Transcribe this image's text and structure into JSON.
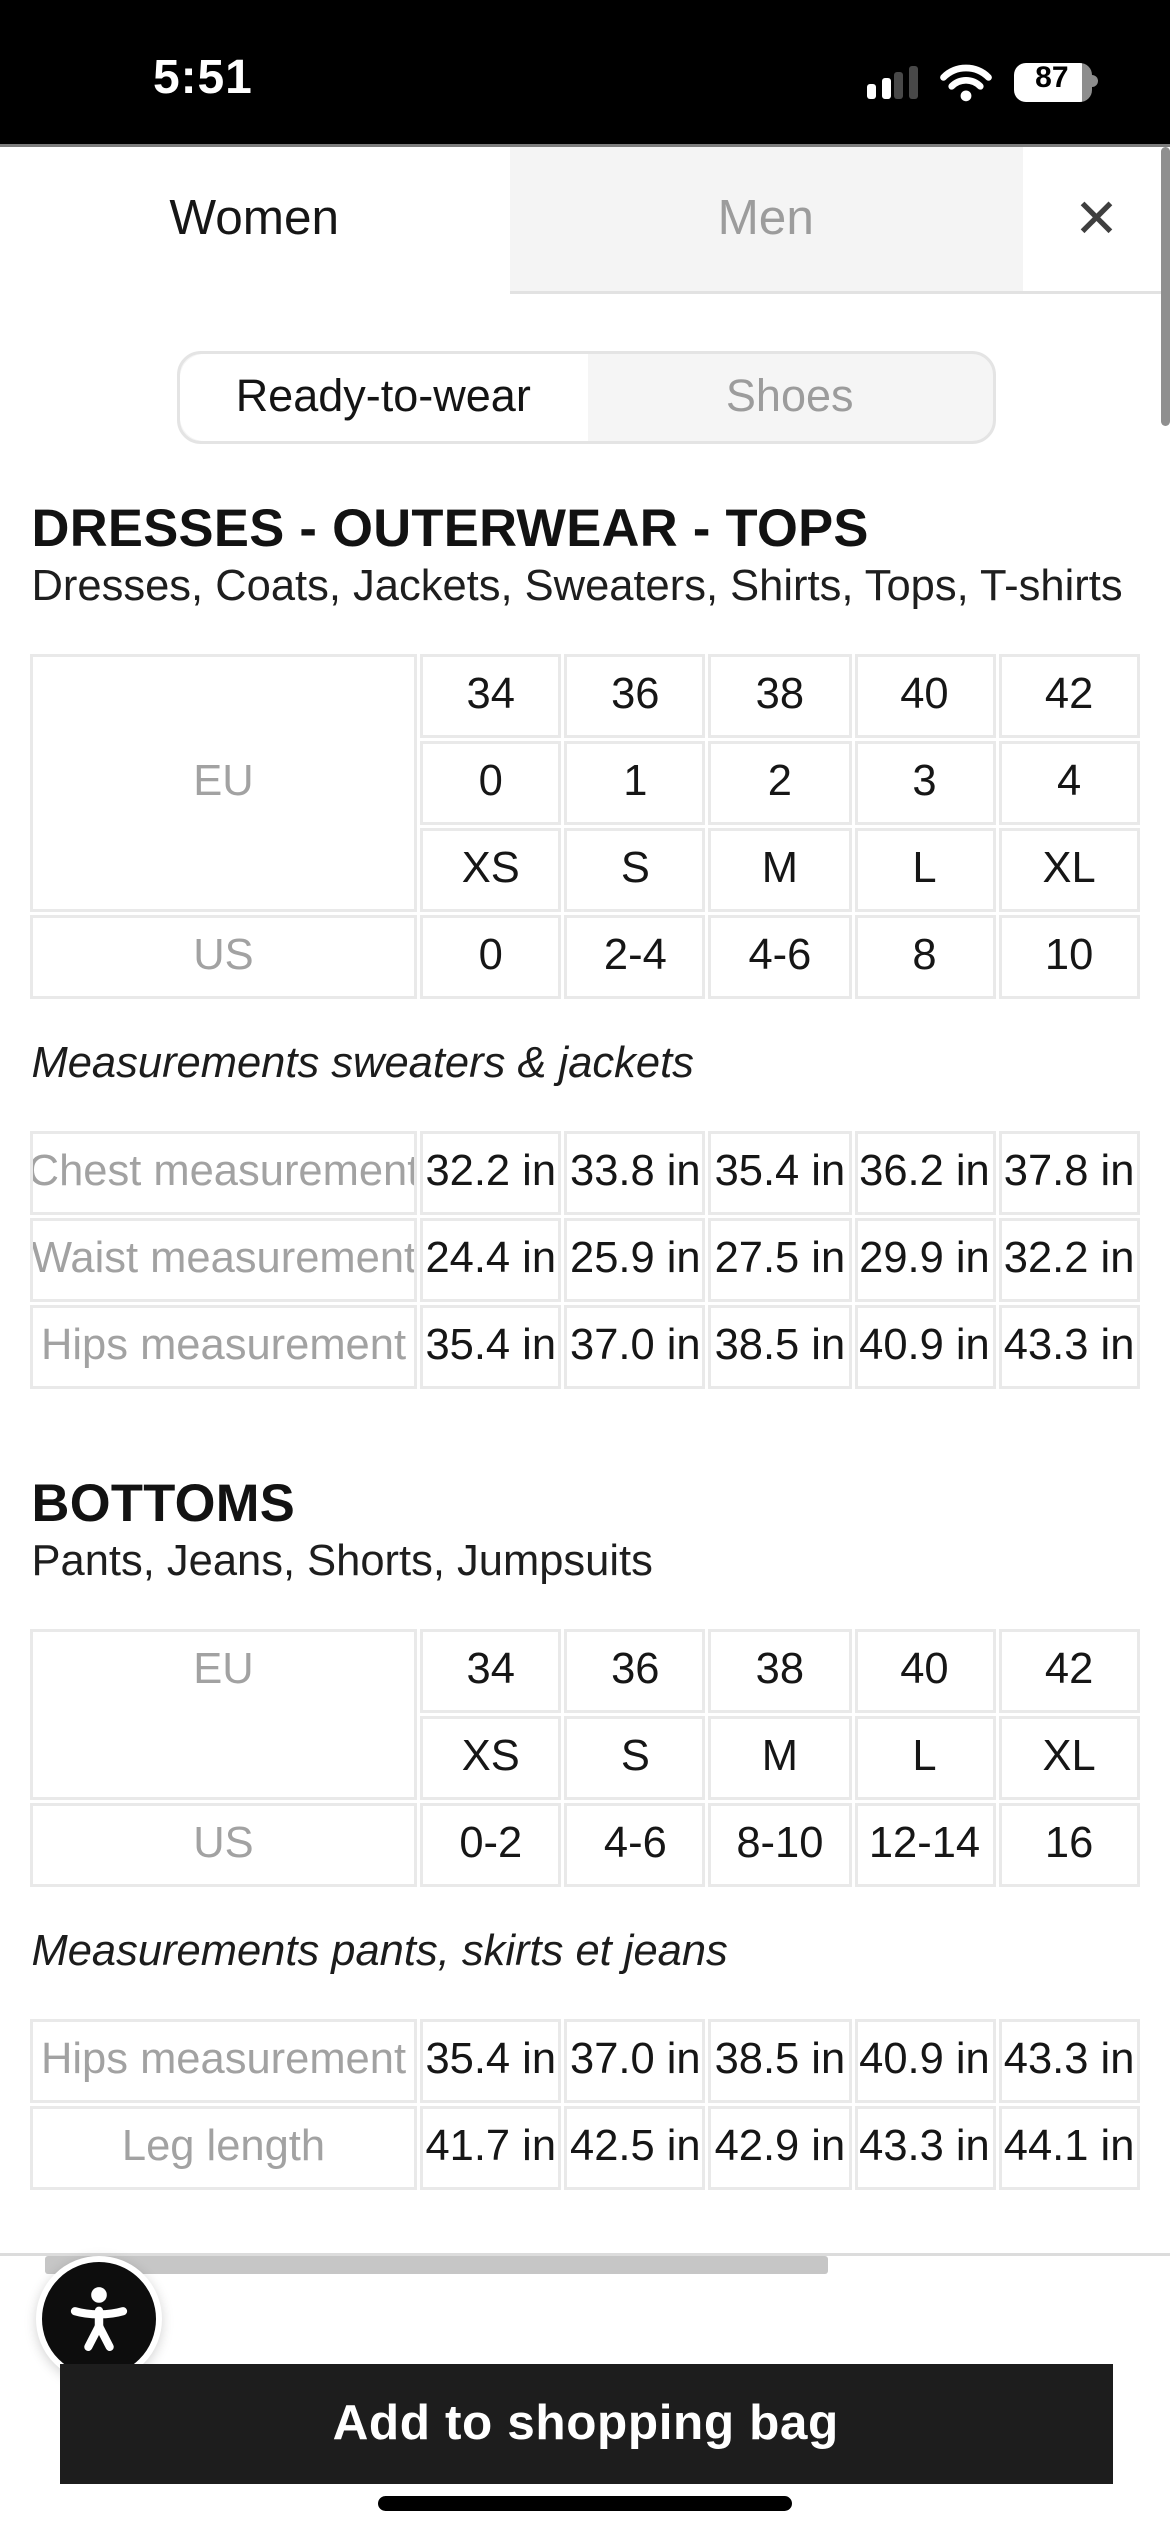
{
  "status_bar": {
    "time": "5:51",
    "battery_percent": "87",
    "signal_bars_filled": 2,
    "signal_bars_total": 4
  },
  "header": {
    "tabs": [
      {
        "label": "Women",
        "active": true
      },
      {
        "label": "Men",
        "active": false
      }
    ],
    "close_icon": "✕"
  },
  "category_tabs": [
    {
      "label": "Ready-to-wear",
      "active": true
    },
    {
      "label": "Shoes",
      "active": false
    }
  ],
  "sections": [
    {
      "title": "DRESSES - OUTERWEAR - TOPS",
      "subtitle": "Dresses, Coats, Jackets, Sweaters, Shirts, Tops, T-shirts",
      "size_table": {
        "groups": [
          {
            "label": "EU",
            "label_align": "center",
            "rows": [
              [
                "34",
                "36",
                "38",
                "40",
                "42"
              ],
              [
                "0",
                "1",
                "2",
                "3",
                "4"
              ],
              [
                "XS",
                "S",
                "M",
                "L",
                "XL"
              ]
            ]
          },
          {
            "label": "US",
            "label_align": "center",
            "rows": [
              [
                "0",
                "2-4",
                "4-6",
                "8",
                "10"
              ]
            ]
          }
        ]
      },
      "measurements_title": "Measurements sweaters & jackets",
      "measurements": [
        {
          "label": "Chest measurement",
          "values": [
            "32.2 in",
            "33.8 in",
            "35.4 in",
            "36.2 in",
            "37.8 in"
          ]
        },
        {
          "label": "Waist measurement",
          "values": [
            "24.4 in",
            "25.9 in",
            "27.5 in",
            "29.9 in",
            "32.2 in"
          ]
        },
        {
          "label": "Hips measurement",
          "values": [
            "35.4 in",
            "37.0 in",
            "38.5 in",
            "40.9 in",
            "43.3 in"
          ]
        }
      ]
    },
    {
      "title": "BOTTOMS",
      "subtitle": "Pants, Jeans, Shorts, Jumpsuits",
      "size_table": {
        "groups": [
          {
            "label": "EU",
            "label_align": "first-row",
            "rows": [
              [
                "34",
                "36",
                "38",
                "40",
                "42"
              ],
              [
                "XS",
                "S",
                "M",
                "L",
                "XL"
              ]
            ]
          },
          {
            "label": "US",
            "label_align": "center",
            "rows": [
              [
                "0-2",
                "4-6",
                "8-10",
                "12-14",
                "16"
              ]
            ]
          }
        ]
      },
      "measurements_title": "Measurements pants, skirts et jeans",
      "measurements": [
        {
          "label": "Hips measurement",
          "values": [
            "35.4 in",
            "37.0 in",
            "38.5 in",
            "40.9 in",
            "43.3 in"
          ]
        },
        {
          "label": "Leg length",
          "values": [
            "41.7 in",
            "42.5 in",
            "42.9 in",
            "43.3 in",
            "44.1 in"
          ]
        }
      ]
    }
  ],
  "footer": {
    "add_to_bag_label": "Add to shopping bag"
  },
  "colors": {
    "status_bar_bg": "#000000",
    "button_bg": "#1d1d1d",
    "inactive_tab_bg": "#f4f4f4",
    "table_border": "#e9e9e9",
    "label_text": "#a2a2a2",
    "muted_text": "#9c9c9c",
    "text": "#141414"
  }
}
